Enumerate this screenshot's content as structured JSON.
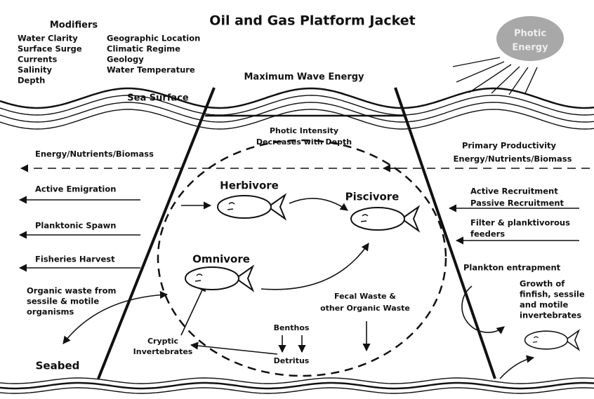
{
  "title": "Oil and Gas Platform Jacket",
  "modifiers": {
    "heading": "Modifiers",
    "left": [
      "Water Clarity",
      "Surface Surge",
      "Currents",
      "Salinity",
      "Depth"
    ],
    "right": [
      "Geographic Location",
      "Climatic Regime",
      "Geology",
      "Water Temperature"
    ]
  },
  "photic_energy": [
    "Photic",
    "Energy"
  ],
  "maximum_wave_energy": "Maximum Wave Energy",
  "sea_surface": "Sea Surface",
  "photic_intensity": [
    "Photic Intensity",
    "Decreases with Depth"
  ],
  "left_flows": {
    "energy": "Energy/Nutrients/Biomass",
    "emigration": "Active Emigration",
    "spawn": "Planktonic Spawn",
    "harvest": "Fisheries Harvest",
    "organic_waste": [
      "Organic waste from",
      "sessile & motile",
      "organisms"
    ]
  },
  "right_flows": {
    "primary": [
      "Primary Productivity",
      "Energy/Nutrients/Biomass"
    ],
    "recruitment": [
      "Active Recruitment",
      "Passive Recruitment"
    ],
    "feeders": [
      "Filter & planktivorous",
      "feeders"
    ],
    "entrapment": "Plankton entrapment",
    "growth": [
      "Growth of",
      "finfish, sessile",
      "and motile",
      "invertebrates"
    ]
  },
  "trophic": {
    "herbivore": "Herbivore",
    "piscivore": "Piscivore",
    "omnivore": "Omnivore"
  },
  "fecal_waste": [
    "Fecal Waste &",
    "other Organic Waste"
  ],
  "benthos": "Benthos",
  "detritus": "Detritus",
  "cryptic": [
    "Cryptic",
    "Invertebrates"
  ],
  "seabed": "Seabed"
}
